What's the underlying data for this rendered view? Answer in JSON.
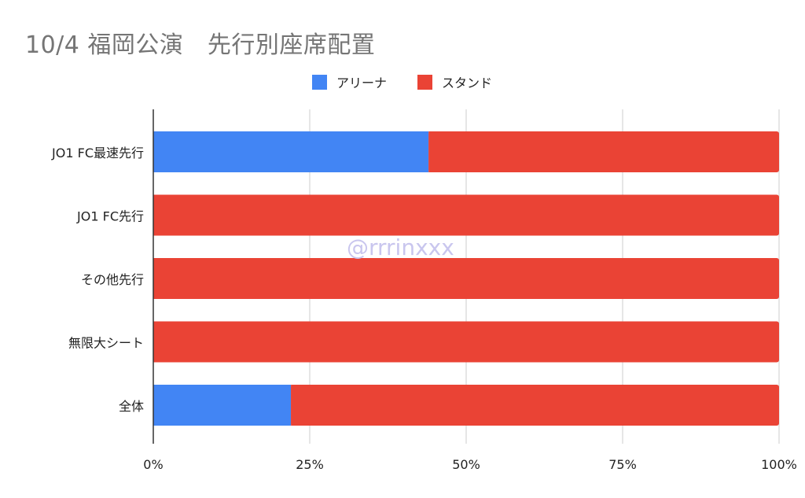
{
  "chart_data": {
    "type": "bar",
    "orientation": "horizontal",
    "stacked": "percent",
    "title": "10/4 福岡公演　先行別座席配置",
    "xlabel": "",
    "ylabel": "",
    "categories": [
      "JO1 FC最速先行",
      "JO1 FC先行",
      "その他先行",
      "無限大シート",
      "全体"
    ],
    "series": [
      {
        "name": "アリーナ",
        "color": "#4285f4",
        "values": [
          44,
          0,
          0,
          0,
          22
        ]
      },
      {
        "name": "スタンド",
        "color": "#ea4335",
        "values": [
          56,
          100,
          100,
          100,
          78
        ]
      }
    ],
    "xlim": [
      0,
      100
    ],
    "xticks": [
      0,
      25,
      50,
      75,
      100
    ],
    "xtick_labels": [
      "0%",
      "25%",
      "50%",
      "75%",
      "100%"
    ],
    "grid": true,
    "legend_position": "top-center"
  },
  "watermark": "@rrrinxxx"
}
